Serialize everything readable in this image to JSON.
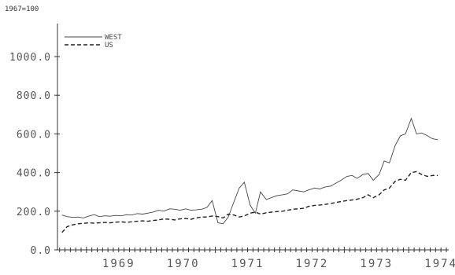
{
  "chart_data": {
    "type": "line",
    "unit_label": "1967=100",
    "ylim": [
      0,
      1000
    ],
    "y_ticks": [
      "0.0",
      "200.0",
      "400.0",
      "600.0",
      "800.0",
      "1000.0"
    ],
    "x_tick_labels": [
      "1969",
      "1970",
      "1971",
      "1972",
      "1973",
      "1974"
    ],
    "legend": {
      "position": "top-left"
    },
    "grid": false,
    "series": [
      {
        "name": "WEST",
        "style": "solid",
        "color": "#444444",
        "x": [
          1968.62,
          1968.7,
          1968.79,
          1968.87,
          1968.95,
          1969.04,
          1969.12,
          1969.2,
          1969.29,
          1969.37,
          1969.45,
          1969.54,
          1969.62,
          1969.7,
          1969.79,
          1969.87,
          1969.95,
          1970.04,
          1970.12,
          1970.2,
          1970.29,
          1970.37,
          1970.45,
          1970.54,
          1970.62,
          1970.7,
          1970.79,
          1970.87,
          1970.95,
          1971.04,
          1971.12,
          1971.2,
          1971.29,
          1971.37,
          1971.45,
          1971.54,
          1971.62,
          1971.7,
          1971.79,
          1971.87,
          1971.95,
          1972.04,
          1972.12,
          1972.2,
          1972.29,
          1972.37,
          1972.45,
          1972.54,
          1972.62,
          1972.7,
          1972.79,
          1972.87,
          1972.95,
          1973.04,
          1973.12,
          1973.2,
          1973.29,
          1973.37,
          1973.45,
          1973.54,
          1973.62,
          1973.7,
          1973.79,
          1973.87,
          1973.95,
          1974.04,
          1974.12,
          1974.2,
          1974.29,
          1974.37,
          1974.45
        ],
        "values": [
          180,
          172,
          168,
          170,
          165,
          175,
          182,
          172,
          176,
          174,
          178,
          176,
          182,
          180,
          188,
          185,
          190,
          196,
          205,
          200,
          212,
          210,
          205,
          212,
          205,
          207,
          210,
          220,
          255,
          140,
          135,
          170,
          250,
          320,
          350,
          230,
          190,
          300,
          260,
          270,
          280,
          285,
          290,
          310,
          305,
          300,
          310,
          320,
          315,
          325,
          330,
          345,
          360,
          380,
          385,
          370,
          390,
          395,
          360,
          390,
          460,
          450,
          540,
          590,
          600,
          680,
          600,
          605,
          590,
          575,
          570
        ]
      },
      {
        "name": "US",
        "style": "dashed",
        "color": "#222222",
        "x": [
          1968.62,
          1968.7,
          1968.79,
          1968.87,
          1968.95,
          1969.04,
          1969.12,
          1969.2,
          1969.29,
          1969.37,
          1969.45,
          1969.54,
          1969.62,
          1969.7,
          1969.79,
          1969.87,
          1969.95,
          1970.04,
          1970.12,
          1970.2,
          1970.29,
          1970.37,
          1970.45,
          1970.54,
          1970.62,
          1970.7,
          1970.79,
          1970.87,
          1970.95,
          1971.04,
          1971.12,
          1971.2,
          1971.29,
          1971.37,
          1971.45,
          1971.54,
          1971.62,
          1971.7,
          1971.79,
          1971.87,
          1971.95,
          1972.04,
          1972.12,
          1972.2,
          1972.29,
          1972.37,
          1972.45,
          1972.54,
          1972.62,
          1972.7,
          1972.79,
          1972.87,
          1972.95,
          1973.04,
          1973.12,
          1973.2,
          1973.29,
          1973.37,
          1973.45,
          1973.54,
          1973.62,
          1973.7,
          1973.79,
          1973.87,
          1973.95,
          1974.04,
          1974.12,
          1974.2,
          1974.29,
          1974.37,
          1974.45
        ],
        "values": [
          90,
          120,
          130,
          135,
          137,
          140,
          138,
          140,
          142,
          140,
          143,
          145,
          142,
          145,
          148,
          150,
          148,
          152,
          155,
          160,
          158,
          155,
          160,
          162,
          158,
          165,
          170,
          170,
          175,
          172,
          165,
          185,
          180,
          170,
          175,
          190,
          195,
          185,
          192,
          195,
          198,
          200,
          205,
          210,
          212,
          215,
          225,
          230,
          232,
          235,
          240,
          245,
          250,
          255,
          258,
          262,
          270,
          285,
          270,
          285,
          310,
          320,
          355,
          365,
          360,
          400,
          405,
          390,
          380,
          385,
          385
        ]
      }
    ]
  }
}
